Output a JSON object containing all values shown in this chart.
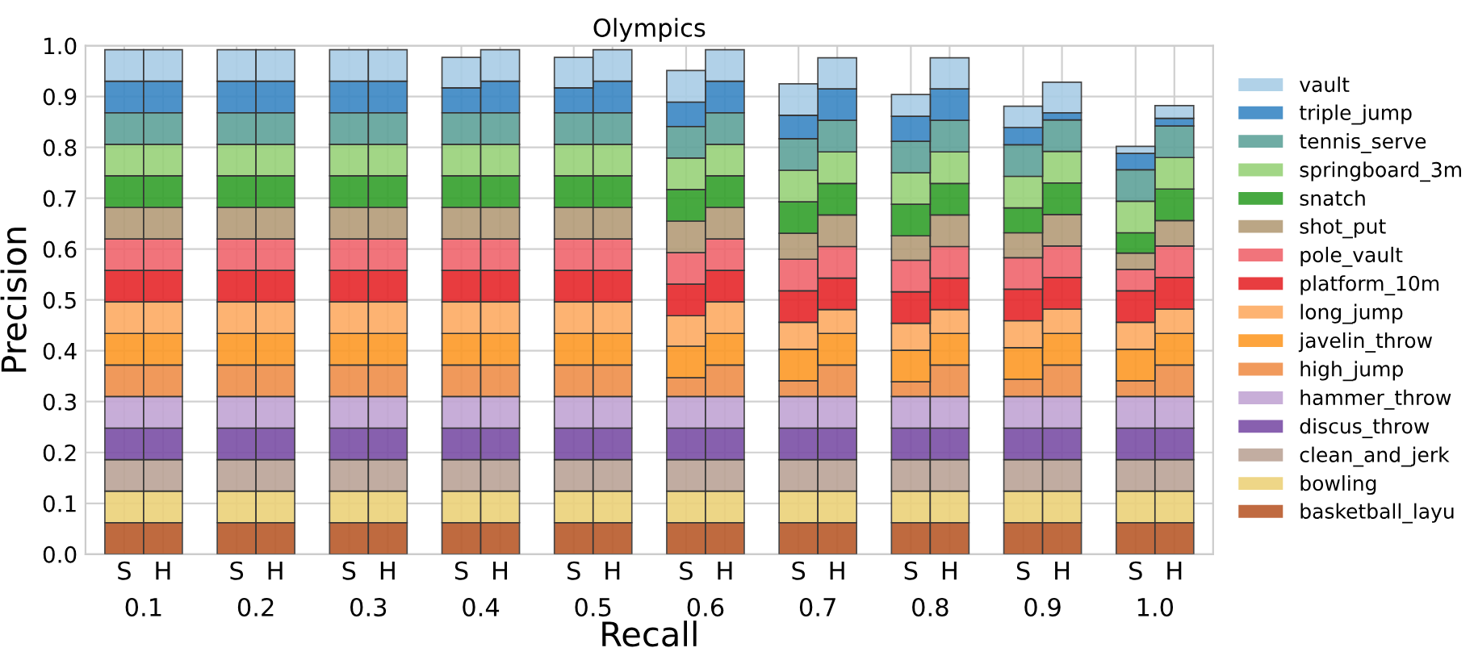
{
  "chart_data": {
    "type": "bar",
    "title": "Olympics",
    "xlabel": "Recall",
    "ylabel": "Precision",
    "stacked": true,
    "categories": [
      "S",
      "H",
      "S",
      "H",
      "S",
      "H",
      "S",
      "H",
      "S",
      "H",
      "S",
      "H",
      "S",
      "H",
      "S",
      "H",
      "S",
      "H",
      "S",
      "H"
    ],
    "annotations": [
      "0.1",
      "0.2",
      "0.3",
      "0.4",
      "0.5",
      "0.6",
      "0.7",
      "0.8",
      "0.9",
      "1.0"
    ],
    "ylim": [
      0,
      1.0
    ],
    "yticks": [
      {
        "value": 0,
        "label": "0.0"
      },
      0.1,
      0.2,
      0.3,
      0.4,
      0.5,
      0.6,
      0.7,
      0.8,
      0.9,
      {
        "value": 1.0,
        "label": "1.0"
      }
    ],
    "grid": true,
    "legend": "right",
    "series": [
      {
        "name": "basketball_layu",
        "color": "#b95a2b",
        "values": [
          0.062,
          0.062,
          0.062,
          0.062,
          0.062,
          0.062,
          0.062,
          0.062,
          0.062,
          0.062,
          0.062,
          0.062,
          0.062,
          0.062,
          0.062,
          0.062,
          0.062,
          0.062,
          0.062,
          0.062
        ]
      },
      {
        "name": "bowling",
        "color": "#ecd27a",
        "values": [
          0.062,
          0.062,
          0.062,
          0.062,
          0.062,
          0.062,
          0.062,
          0.062,
          0.062,
          0.062,
          0.062,
          0.062,
          0.062,
          0.062,
          0.062,
          0.062,
          0.062,
          0.062,
          0.062,
          0.062
        ]
      },
      {
        "name": "clean_and_jerk",
        "color": "#bba497",
        "values": [
          0.062,
          0.062,
          0.062,
          0.062,
          0.062,
          0.062,
          0.062,
          0.062,
          0.062,
          0.062,
          0.062,
          0.062,
          0.062,
          0.062,
          0.062,
          0.062,
          0.062,
          0.062,
          0.062,
          0.062
        ]
      },
      {
        "name": "discus_throw",
        "color": "#7b4fa6",
        "values": [
          0.062,
          0.062,
          0.062,
          0.062,
          0.062,
          0.062,
          0.062,
          0.062,
          0.062,
          0.062,
          0.062,
          0.062,
          0.062,
          0.062,
          0.062,
          0.062,
          0.062,
          0.062,
          0.062,
          0.062
        ]
      },
      {
        "name": "hammer_throw",
        "color": "#c2a5d4",
        "values": [
          0.062,
          0.062,
          0.062,
          0.062,
          0.062,
          0.062,
          0.062,
          0.062,
          0.062,
          0.062,
          0.062,
          0.062,
          0.062,
          0.062,
          0.062,
          0.062,
          0.062,
          0.062,
          0.062,
          0.062
        ]
      },
      {
        "name": "high_jump",
        "color": "#ef8f4a",
        "values": [
          0.062,
          0.062,
          0.062,
          0.062,
          0.062,
          0.062,
          0.062,
          0.062,
          0.062,
          0.062,
          0.037,
          0.062,
          0.031,
          0.062,
          0.029,
          0.062,
          0.034,
          0.062,
          0.031,
          0.062
        ]
      },
      {
        "name": "javelin_throw",
        "color": "#fd9a28",
        "values": [
          0.062,
          0.062,
          0.062,
          0.062,
          0.062,
          0.062,
          0.062,
          0.062,
          0.062,
          0.062,
          0.062,
          0.062,
          0.062,
          0.062,
          0.062,
          0.062,
          0.062,
          0.062,
          0.062,
          0.062
        ]
      },
      {
        "name": "long_jump",
        "color": "#fdab63",
        "values": [
          0.062,
          0.062,
          0.062,
          0.062,
          0.062,
          0.062,
          0.062,
          0.062,
          0.062,
          0.062,
          0.06,
          0.062,
          0.053,
          0.047,
          0.053,
          0.047,
          0.053,
          0.048,
          0.053,
          0.048
        ]
      },
      {
        "name": "platform_10m",
        "color": "#e6282b",
        "values": [
          0.062,
          0.062,
          0.062,
          0.062,
          0.062,
          0.062,
          0.062,
          0.062,
          0.062,
          0.062,
          0.062,
          0.062,
          0.062,
          0.062,
          0.062,
          0.062,
          0.062,
          0.062,
          0.062,
          0.062
        ]
      },
      {
        "name": "pole_vault",
        "color": "#f0656d",
        "values": [
          0.062,
          0.062,
          0.062,
          0.062,
          0.062,
          0.062,
          0.062,
          0.062,
          0.062,
          0.062,
          0.062,
          0.062,
          0.062,
          0.062,
          0.062,
          0.062,
          0.062,
          0.062,
          0.042,
          0.062
        ]
      },
      {
        "name": "shot_put",
        "color": "#b49c78",
        "values": [
          0.062,
          0.062,
          0.062,
          0.062,
          0.062,
          0.062,
          0.062,
          0.062,
          0.062,
          0.062,
          0.062,
          0.062,
          0.051,
          0.062,
          0.048,
          0.062,
          0.049,
          0.062,
          0.032,
          0.05
        ]
      },
      {
        "name": "snatch",
        "color": "#33a02c",
        "values": [
          0.062,
          0.062,
          0.062,
          0.062,
          0.062,
          0.062,
          0.062,
          0.062,
          0.062,
          0.062,
          0.062,
          0.062,
          0.062,
          0.062,
          0.062,
          0.062,
          0.049,
          0.062,
          0.04,
          0.062
        ]
      },
      {
        "name": "springboard_3m",
        "color": "#98d279",
        "values": [
          0.062,
          0.062,
          0.062,
          0.062,
          0.062,
          0.062,
          0.062,
          0.062,
          0.062,
          0.062,
          0.062,
          0.062,
          0.062,
          0.062,
          0.062,
          0.062,
          0.062,
          0.062,
          0.062,
          0.062
        ]
      },
      {
        "name": "tennis_serve",
        "color": "#5fa39a",
        "values": [
          0.062,
          0.062,
          0.062,
          0.062,
          0.062,
          0.062,
          0.062,
          0.062,
          0.062,
          0.062,
          0.062,
          0.062,
          0.062,
          0.062,
          0.062,
          0.062,
          0.062,
          0.062,
          0.062,
          0.062
        ]
      },
      {
        "name": "triple_jump",
        "color": "#3a87c4",
        "values": [
          0.062,
          0.062,
          0.062,
          0.062,
          0.062,
          0.062,
          0.049,
          0.062,
          0.049,
          0.062,
          0.048,
          0.062,
          0.046,
          0.062,
          0.049,
          0.062,
          0.034,
          0.014,
          0.032,
          0.015
        ]
      },
      {
        "name": "vault",
        "color": "#a9cde6",
        "values": [
          0.062,
          0.062,
          0.062,
          0.062,
          0.062,
          0.062,
          0.06,
          0.062,
          0.06,
          0.062,
          0.062,
          0.062,
          0.062,
          0.061,
          0.043,
          0.061,
          0.042,
          0.06,
          0.014,
          0.025
        ]
      }
    ]
  }
}
